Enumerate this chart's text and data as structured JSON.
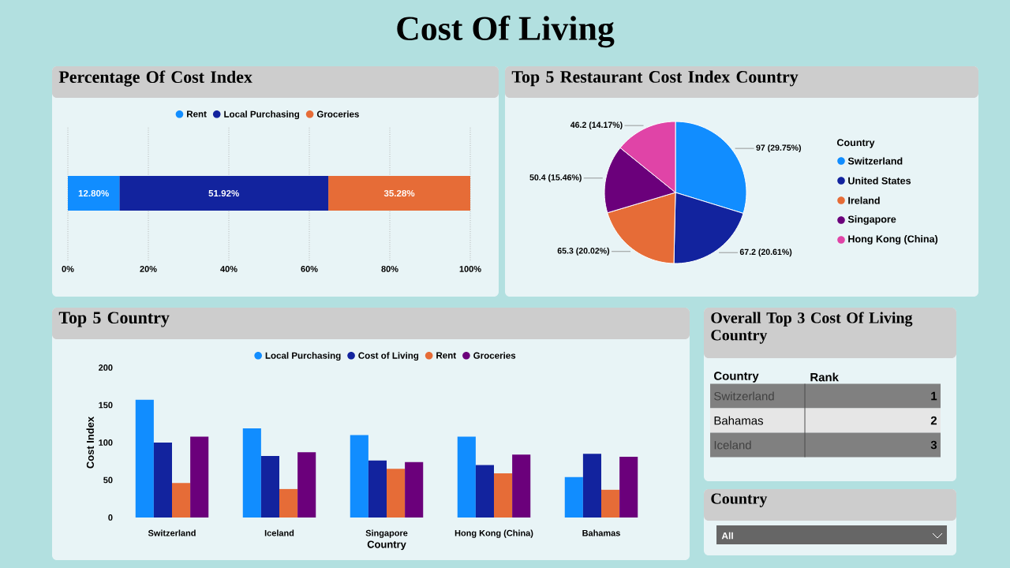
{
  "chart_data": [
    {
      "type": "other",
      "title": "Cost Of Living"
    },
    {
      "type": "bar",
      "title": "Percentage Of Cost Index",
      "orientation": "horizontal",
      "stacked": true,
      "categories": [
        null
      ],
      "series": [
        {
          "name": "Rent",
          "color": "#118dff",
          "values": [
            12.8
          ],
          "value_labels": [
            "12.80%"
          ]
        },
        {
          "name": "Local Purchasing",
          "color": "#12239e",
          "values": [
            51.92
          ],
          "value_labels": [
            "51.92%"
          ]
        },
        {
          "name": "Groceries",
          "color": "#e66c37",
          "values": [
            35.28
          ],
          "value_labels": [
            "35.28%"
          ]
        }
      ],
      "xlim": [
        0,
        100
      ],
      "xticks": [
        {
          "value": 0,
          "label": "0%"
        },
        {
          "value": 20,
          "label": "20%"
        },
        {
          "value": 40,
          "label": "40%"
        },
        {
          "value": 60,
          "label": "60%"
        },
        {
          "value": 80,
          "label": "80%"
        },
        {
          "value": 100,
          "label": "100%"
        }
      ],
      "grid": "x",
      "legend": "top"
    },
    {
      "type": "pie",
      "title": "Top 5 Restaurant Cost Index Country",
      "legend_title": "Country",
      "legend": "right",
      "categories": [
        "Switzerland",
        "United States",
        "Ireland",
        "Singapore",
        "Hong Kong (China)"
      ],
      "values": [
        97,
        67.2,
        65.3,
        50.4,
        46.2
      ],
      "value_labels": [
        "97 (29.75%)",
        "67.2 (20.61%)",
        "65.3 (20.02%)",
        "50.4 (15.46%)",
        "46.2 (14.17%)"
      ],
      "colors": [
        "#118dff",
        "#12239e",
        "#e66c37",
        "#6b007b",
        "#e044a7"
      ]
    },
    {
      "type": "bar",
      "title": "Top 5 Country",
      "xlabel": "Country",
      "ylabel": "Cost Index",
      "legend": "top",
      "categories": [
        "Switzerland",
        "Iceland",
        "Singapore",
        "Hong Kong (China)",
        "Bahamas"
      ],
      "series": [
        {
          "name": "Local Purchasing",
          "color": "#118dff",
          "values": [
            157,
            119,
            110,
            108,
            54
          ]
        },
        {
          "name": "Cost of Living",
          "color": "#12239e",
          "values": [
            100,
            82,
            76,
            70,
            85
          ]
        },
        {
          "name": "Rent",
          "color": "#e66c37",
          "values": [
            46,
            38,
            65,
            59,
            37
          ]
        },
        {
          "name": "Groceries",
          "color": "#6b007b",
          "values": [
            108,
            87,
            74,
            84,
            81
          ]
        }
      ],
      "ylim": [
        0,
        200
      ],
      "yticks": [
        0,
        50,
        100,
        150,
        200
      ]
    },
    {
      "type": "other",
      "title": "Overall Top 3 Cost Of Living Country",
      "xlabel": "Country",
      "ylabel": "Rank",
      "categories": [
        "Switzerland",
        "Bahamas",
        "Iceland"
      ],
      "values": [
        1,
        2,
        3
      ],
      "data_labels": true
    },
    {
      "type": "other",
      "title": "Country",
      "annotations": [
        "All"
      ]
    }
  ]
}
